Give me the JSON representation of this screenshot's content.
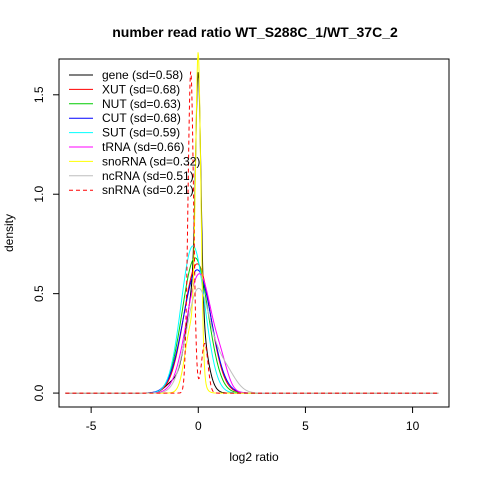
{
  "chart_data": {
    "type": "line",
    "title": "number read ratio WT_S288C_1/WT_37C_2",
    "xlabel": "log2 ratio",
    "ylabel": "density",
    "xlim": [
      -6.5,
      11.7
    ],
    "ylim": [
      -0.07,
      1.68
    ],
    "xticks": [
      -5,
      0,
      5,
      10
    ],
    "yticks": [
      0.0,
      0.5,
      1.0,
      1.5
    ],
    "xtick_labels": [
      "-5",
      "0",
      "5",
      "10"
    ],
    "ytick_labels": [
      "0.0",
      "0.5",
      "1.0",
      "1.5"
    ],
    "grid": false,
    "legend_position": "top-left",
    "support_range": [
      -6.2,
      11.2
    ],
    "series": [
      {
        "name": "gene (sd=0.58)",
        "color": "#000000",
        "dash": false,
        "peaks": [
          {
            "mu": 0.0,
            "sd": 0.12,
            "h": 1.1
          },
          {
            "mu": -0.15,
            "sd": 0.4,
            "h": 0.55
          },
          {
            "mu": -1.2,
            "sd": 0.35,
            "h": 0.05
          }
        ]
      },
      {
        "name": "XUT (sd=0.68)",
        "color": "#ff0000",
        "dash": false,
        "peaks": [
          {
            "mu": -0.05,
            "sd": 0.62,
            "h": 0.65
          }
        ]
      },
      {
        "name": "NUT (sd=0.63)",
        "color": "#00cc00",
        "dash": false,
        "peaks": [
          {
            "mu": -0.15,
            "sd": 0.6,
            "h": 0.68
          }
        ]
      },
      {
        "name": "CUT (sd=0.68)",
        "color": "#0000ff",
        "dash": false,
        "peaks": [
          {
            "mu": -0.05,
            "sd": 0.65,
            "h": 0.62
          }
        ]
      },
      {
        "name": "SUT (sd=0.59)",
        "color": "#00ffff",
        "dash": false,
        "peaks": [
          {
            "mu": -0.25,
            "sd": 0.55,
            "h": 0.74
          }
        ]
      },
      {
        "name": "tRNA (sd=0.66)",
        "color": "#ff00ff",
        "dash": false,
        "peaks": [
          {
            "mu": 0.05,
            "sd": 0.6,
            "h": 0.6
          },
          {
            "mu": 1.1,
            "sd": 0.3,
            "h": 0.08
          }
        ]
      },
      {
        "name": "snoRNA (sd=0.32)",
        "color": "#ffff00",
        "dash": false,
        "peaks": [
          {
            "mu": 0.0,
            "sd": 0.12,
            "h": 1.5
          },
          {
            "mu": -0.3,
            "sd": 0.3,
            "h": 0.35
          }
        ]
      },
      {
        "name": "ncRNA (sd=0.51)",
        "color": "#bebebe",
        "dash": false,
        "peaks": [
          {
            "mu": 0.0,
            "sd": 0.55,
            "h": 0.52
          },
          {
            "mu": 1.2,
            "sd": 0.5,
            "h": 0.12
          }
        ]
      },
      {
        "name": "snRNA (sd=0.21)",
        "color": "#ff0000",
        "dash": true,
        "peaks": [
          {
            "mu": -0.35,
            "sd": 0.13,
            "h": 1.62
          },
          {
            "mu": 0.3,
            "sd": 0.15,
            "h": 0.25
          }
        ]
      }
    ]
  }
}
